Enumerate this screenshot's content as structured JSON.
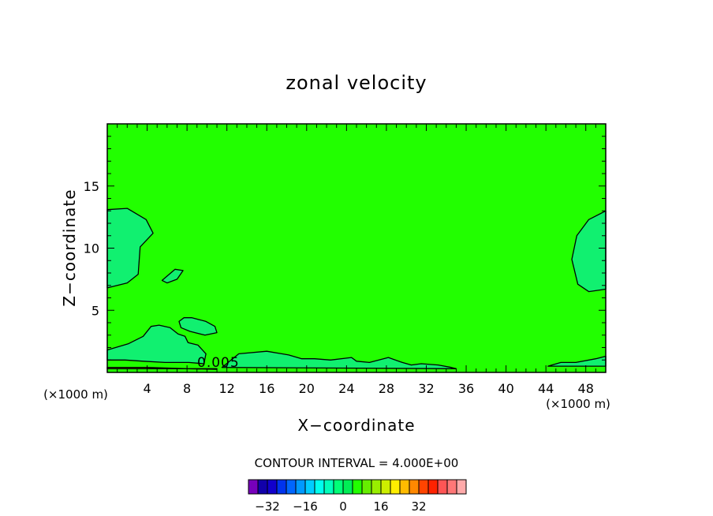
{
  "chart_data": {
    "type": "heatmap",
    "title": "zonal velocity",
    "xlabel": "X−coordinate",
    "ylabel": "Z−coordinate",
    "x_unit_left": "(×1000 m)",
    "x_unit_right": "(×1000 m)",
    "xlim": [
      0,
      50
    ],
    "ylim": [
      0,
      20
    ],
    "x_ticks": [
      {
        "value": 4,
        "label": "4"
      },
      {
        "value": 8,
        "label": "8"
      },
      {
        "value": 12,
        "label": "12"
      },
      {
        "value": 16,
        "label": "16"
      },
      {
        "value": 20,
        "label": "20"
      },
      {
        "value": 24,
        "label": "24"
      },
      {
        "value": 28,
        "label": "28"
      },
      {
        "value": 32,
        "label": "32"
      },
      {
        "value": 36,
        "label": "36"
      },
      {
        "value": 40,
        "label": "40"
      },
      {
        "value": 44,
        "label": "44"
      },
      {
        "value": 48,
        "label": "48"
      }
    ],
    "y_ticks": [
      {
        "value": 5,
        "label": "5"
      },
      {
        "value": 10,
        "label": "10"
      },
      {
        "value": 15,
        "label": "15"
      }
    ],
    "background_level_color": "#22ff00",
    "contour_annotation": "0.005",
    "contour_regions": [
      {
        "level_color": "#11f070",
        "points": [
          [
            0,
            13.1
          ],
          [
            2,
            13.2
          ],
          [
            3.9,
            12.3
          ],
          [
            4.6,
            11.2
          ],
          [
            3.3,
            10.1
          ],
          [
            3.1,
            7.9
          ],
          [
            2,
            7.2
          ],
          [
            0,
            6.8
          ]
        ]
      },
      {
        "level_color": "#11f070",
        "points": [
          [
            50,
            13.0
          ],
          [
            48.3,
            12.3
          ],
          [
            47.1,
            11.0
          ],
          [
            46.6,
            9.1
          ],
          [
            47.2,
            7.1
          ],
          [
            48.3,
            6.5
          ],
          [
            50,
            6.7
          ]
        ]
      },
      {
        "level_color": "#11f070",
        "points": [
          [
            5.5,
            7.4
          ],
          [
            6.8,
            8.3
          ],
          [
            7.6,
            8.2
          ],
          [
            7,
            7.5
          ],
          [
            6,
            7.2
          ]
        ]
      },
      {
        "level_color": "#11f070",
        "points": [
          [
            7.2,
            4.1
          ],
          [
            7.7,
            4.4
          ],
          [
            8.5,
            4.4
          ],
          [
            9.9,
            4.1
          ],
          [
            10.8,
            3.7
          ],
          [
            11,
            3.2
          ],
          [
            9.8,
            3.0
          ],
          [
            8.3,
            3.3
          ],
          [
            7.4,
            3.6
          ]
        ]
      },
      {
        "level_color": "#11f070",
        "points": [
          [
            0,
            1.8
          ],
          [
            2.1,
            2.3
          ],
          [
            3.6,
            2.9
          ],
          [
            4.4,
            3.7
          ],
          [
            5.2,
            3.8
          ],
          [
            6.3,
            3.6
          ],
          [
            7.1,
            3.1
          ],
          [
            7.8,
            2.9
          ],
          [
            8.1,
            2.4
          ],
          [
            9.1,
            2.2
          ],
          [
            9.9,
            1.5
          ],
          [
            9.7,
            0.7
          ],
          [
            8.2,
            0.8
          ],
          [
            5.8,
            0.8
          ],
          [
            3.6,
            0.9
          ],
          [
            1.8,
            1.0
          ],
          [
            0,
            1.0
          ]
        ]
      },
      {
        "level_color": "#11f070",
        "points": [
          [
            11.5,
            0.4
          ],
          [
            13.2,
            1.5
          ],
          [
            16,
            1.7
          ],
          [
            17.5,
            1.5
          ],
          [
            18.2,
            1.4
          ],
          [
            19.5,
            1.1
          ],
          [
            20.8,
            1.1
          ],
          [
            22.4,
            1.0
          ],
          [
            24.5,
            1.2
          ],
          [
            25,
            0.9
          ],
          [
            26.3,
            0.8
          ],
          [
            28.2,
            1.2
          ],
          [
            29.6,
            0.8
          ],
          [
            30.5,
            0.6
          ],
          [
            31.5,
            0.7
          ],
          [
            33.2,
            0.6
          ],
          [
            34.5,
            0.4
          ],
          [
            35,
            0.3
          ]
        ]
      },
      {
        "level_color": "#11f070",
        "points": [
          [
            44.2,
            0.5
          ],
          [
            45.5,
            0.8
          ],
          [
            47,
            0.8
          ],
          [
            49,
            1.1
          ],
          [
            50,
            1.3
          ],
          [
            50,
            0.5
          ]
        ]
      },
      {
        "level_color": "#88ee00",
        "points": [
          [
            0,
            0.4
          ],
          [
            4,
            0.4
          ],
          [
            8,
            0.3
          ],
          [
            11,
            0.25
          ],
          [
            11,
            0.3
          ],
          [
            0,
            0.3
          ]
        ]
      }
    ],
    "colorbar": {
      "title": "CONTOUR INTERVAL = 4.000E+00",
      "colors": [
        "#7700bb",
        "#1100aa",
        "#1100cc",
        "#0033ee",
        "#0066ff",
        "#0099ff",
        "#00ccff",
        "#00ffee",
        "#00ffbb",
        "#00ff77",
        "#00ee55",
        "#22ff00",
        "#66ee00",
        "#99ee00",
        "#ccee00",
        "#ffee00",
        "#ffbb00",
        "#ff8800",
        "#ff4400",
        "#ff2200",
        "#ff5555",
        "#ff7777",
        "#ffaaaa"
      ],
      "labels": [
        {
          "index": 1,
          "label": "−32"
        },
        {
          "index": 5,
          "label": "−16"
        },
        {
          "index": 9,
          "label": "0"
        },
        {
          "index": 13,
          "label": "16"
        },
        {
          "index": 17,
          "label": "32"
        }
      ]
    }
  }
}
